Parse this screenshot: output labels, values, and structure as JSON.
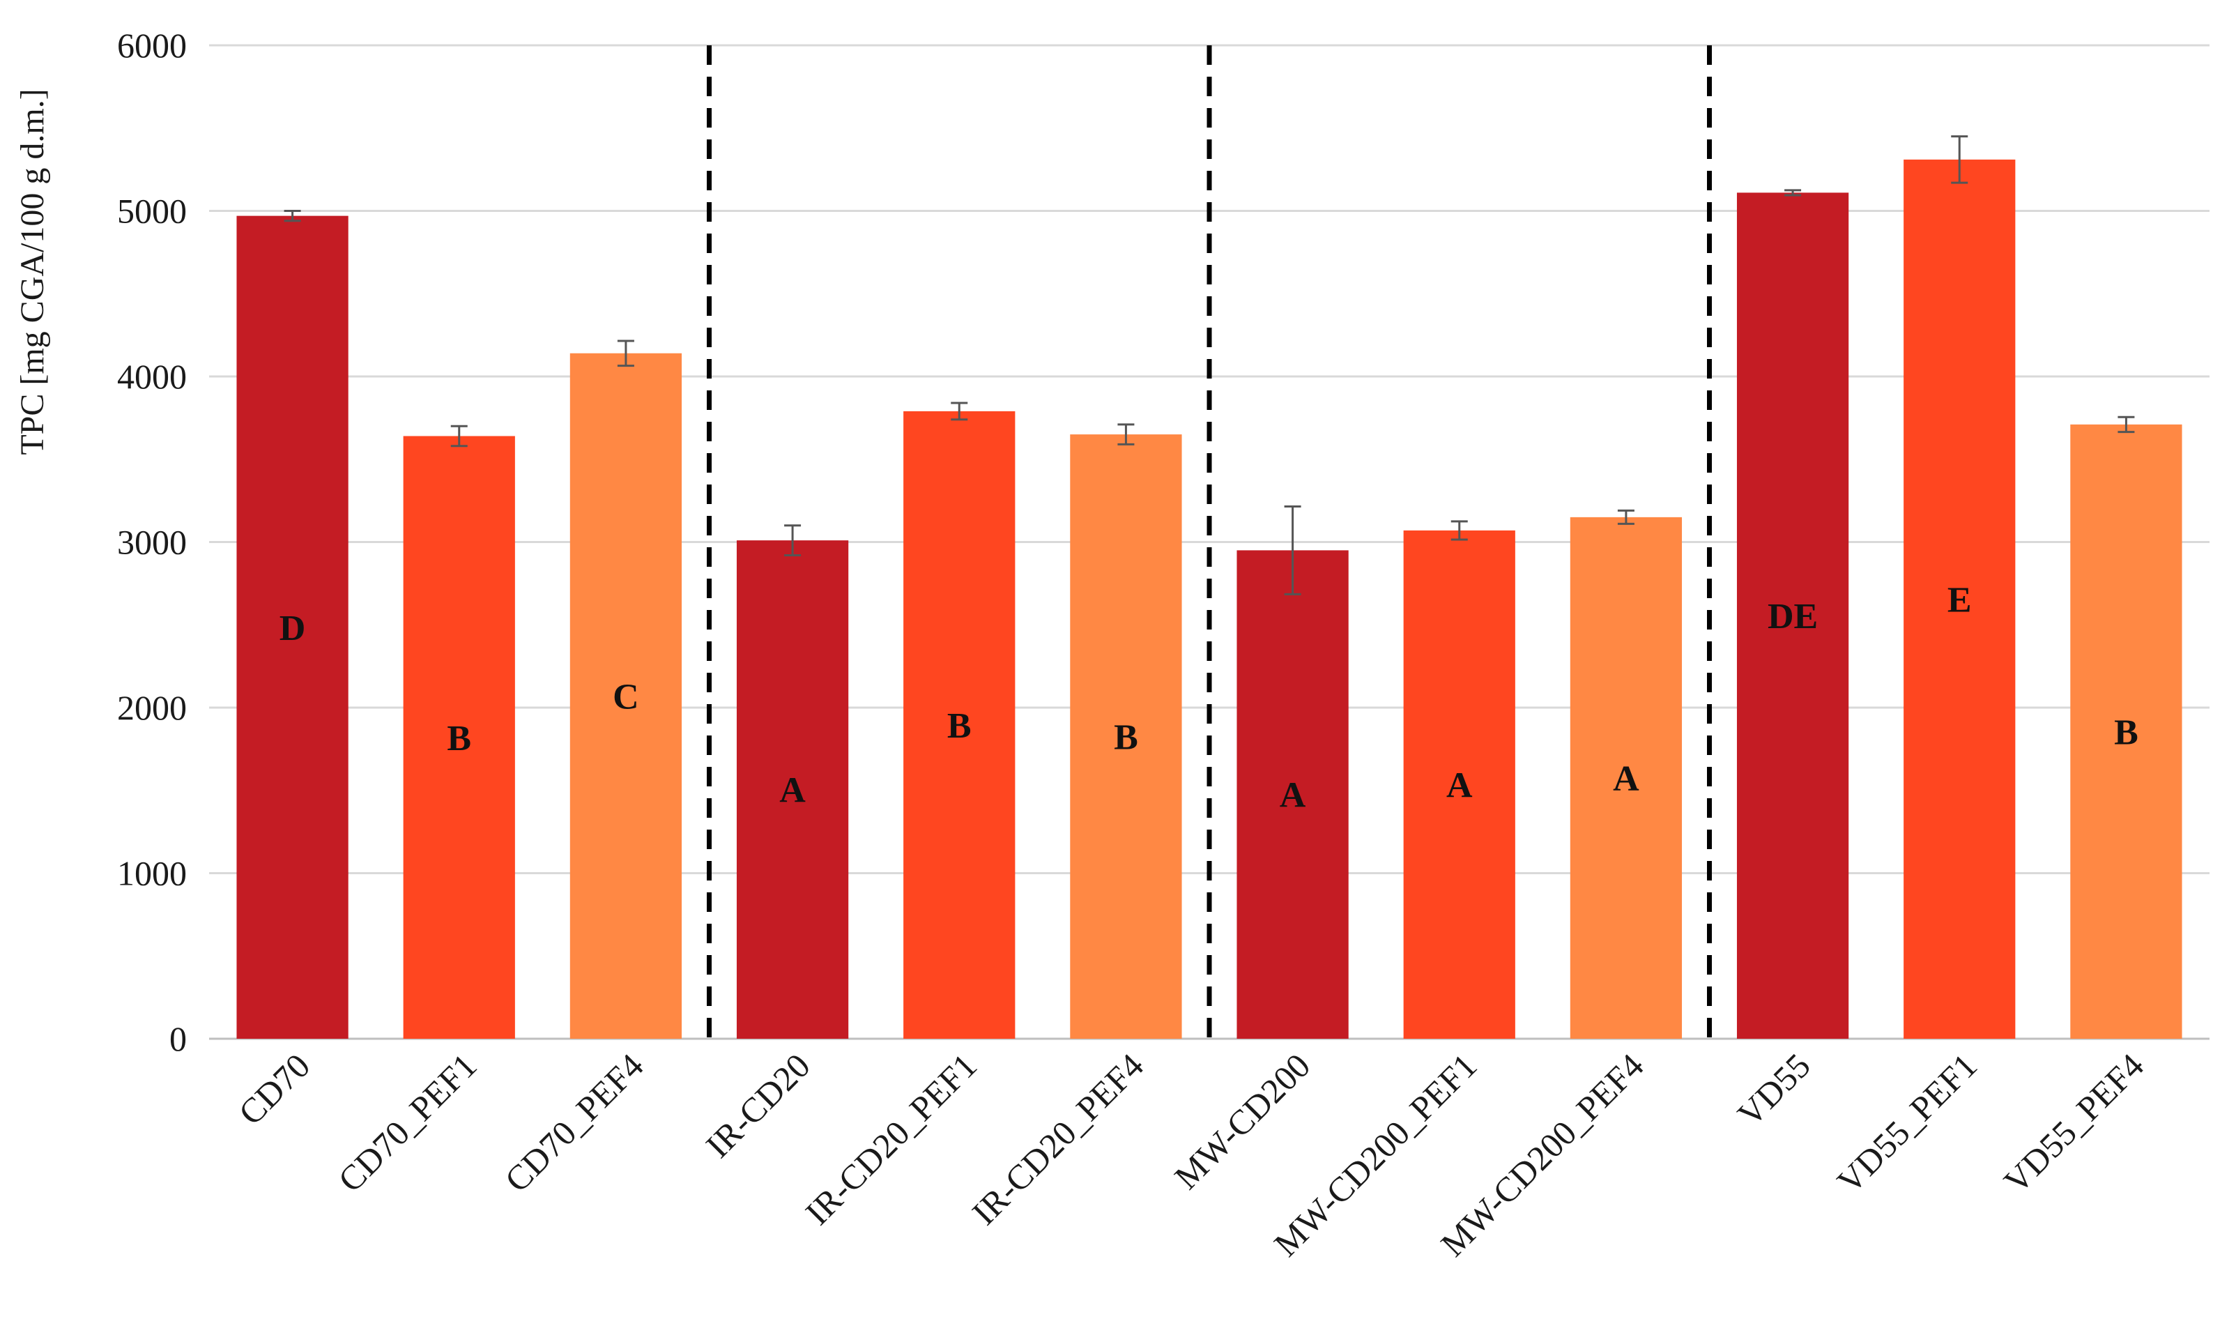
{
  "chart_data": {
    "type": "bar",
    "title": "",
    "xlabel": "",
    "ylabel": "TPC [mg CGA/100 g d.m.]",
    "ylim": [
      0,
      6000
    ],
    "yticks": [
      0,
      1000,
      2000,
      3000,
      4000,
      5000,
      6000
    ],
    "grid": true,
    "categories": [
      "CD70",
      "CD70_PEF1",
      "CD70_PEF4",
      "IR-CD20",
      "IR-CD20_PEF1",
      "IR-CD20_PEF4",
      "MW-CD200",
      "MW-CD200_PEF1",
      "MW-CD200_PEF4",
      "VD55",
      "VD55_PEF1",
      "VD55_PEF4"
    ],
    "values": [
      4970,
      3640,
      4140,
      3010,
      3790,
      3650,
      2950,
      3070,
      3150,
      5110,
      5310,
      3710
    ],
    "errors": [
      30,
      60,
      75,
      90,
      50,
      60,
      265,
      55,
      40,
      15,
      140,
      45
    ],
    "significance_letters": [
      "D",
      "B",
      "C",
      "A",
      "B",
      "B",
      "A",
      "A",
      "A",
      "DE",
      "E",
      "B"
    ],
    "series_colors": [
      "#c41c24",
      "#ff4620",
      "#ff8844",
      "#c41c24",
      "#ff4620",
      "#ff8844",
      "#c41c24",
      "#ff4620",
      "#ff8844",
      "#c41c24",
      "#ff4620",
      "#ff8844"
    ],
    "group_dividers_after": [
      2,
      5,
      8
    ]
  }
}
